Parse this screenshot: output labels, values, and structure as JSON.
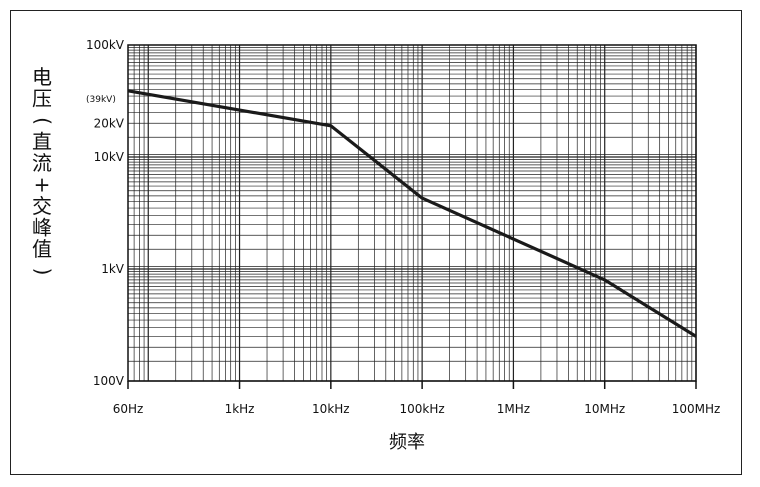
{
  "chart_data": {
    "type": "line",
    "x_scale": "log",
    "y_scale": "log",
    "xlim": [
      60,
      100000000
    ],
    "ylim": [
      100,
      100000
    ],
    "xlabel": "频率",
    "ylabel": "电压(直流+交峰值)",
    "ylabel_lines": [
      "电",
      "压",
      "(",
      "直",
      "流",
      "+",
      "交",
      "峰",
      "值",
      ")"
    ],
    "x_ticks": [
      {
        "value": 60,
        "label": "60Hz"
      },
      {
        "value": 1000,
        "label": "1kHz"
      },
      {
        "value": 10000,
        "label": "10kHz"
      },
      {
        "value": 100000,
        "label": "100kHz"
      },
      {
        "value": 1000000,
        "label": "1MHz"
      },
      {
        "value": 10000000,
        "label": "10MHz"
      },
      {
        "value": 100000000,
        "label": "100MHz"
      }
    ],
    "y_ticks": [
      {
        "value": 100,
        "label": "100V"
      },
      {
        "value": 1000,
        "label": "1kV"
      },
      {
        "value": 10000,
        "label": "10kV"
      },
      {
        "value": 20000,
        "label": "20kV"
      },
      {
        "value": 100000,
        "label": "100kV"
      }
    ],
    "annotations": [
      {
        "text": "(39kV)",
        "x": 60,
        "y": 39000
      }
    ],
    "grid": true,
    "series": [
      {
        "color": "#1a1a1a",
        "x": [
          60,
          10000,
          100000,
          10000000,
          100000000
        ],
        "y": [
          39000,
          19000,
          4300,
          800,
          250
        ]
      }
    ]
  }
}
